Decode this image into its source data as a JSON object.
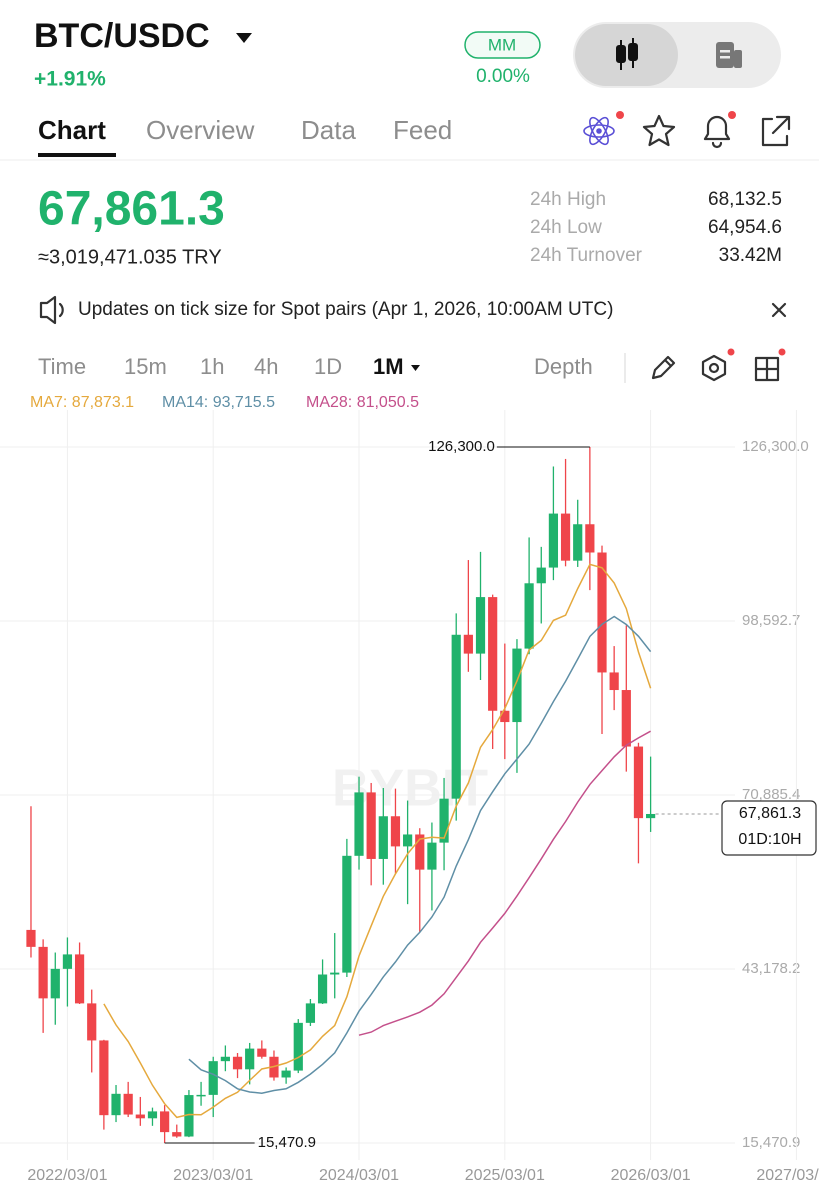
{
  "header": {
    "pair": "BTC/USDC",
    "change": "+1.91%",
    "mm_button": "MM",
    "mm_value": "0.00%"
  },
  "tabs": [
    {
      "label": "Chart",
      "active": true
    },
    {
      "label": "Overview",
      "active": false
    },
    {
      "label": "Data",
      "active": false
    },
    {
      "label": "Feed",
      "active": false
    }
  ],
  "price": {
    "last": "67,861.3",
    "converted": "≈3,019,471.035 TRY"
  },
  "stats": [
    {
      "label": "24h High",
      "value": "68,132.5"
    },
    {
      "label": "24h Low",
      "value": "64,954.6"
    },
    {
      "label": "24h Turnover",
      "value": "33.42M"
    }
  ],
  "notice": "Updates on tick size for Spot pairs (Apr 1, 2026, 10:00AM UTC)",
  "intervals": [
    {
      "label": "Time",
      "active": false
    },
    {
      "label": "15m",
      "active": false
    },
    {
      "label": "1h",
      "active": false
    },
    {
      "label": "4h",
      "active": false
    },
    {
      "label": "1D",
      "active": false
    },
    {
      "label": "1M",
      "active": true
    }
  ],
  "depth": "Depth",
  "chart_data": {
    "type": "candlestick",
    "up_color": "#20b26c",
    "down_color": "#ef454a",
    "open": [
      49400,
      46700,
      38500,
      43200,
      45500,
      37700,
      31800,
      19900,
      23300,
      20000,
      19400,
      20500,
      17200,
      16500,
      23100,
      23130,
      28500,
      29200,
      27200,
      30500,
      29200,
      25900,
      27000,
      34600,
      37700,
      42300,
      42600,
      61200,
      71300,
      60700,
      67500,
      62700,
      64600,
      59000,
      63300,
      70300,
      96400,
      93400,
      102400,
      84300,
      82500,
      94200,
      104600,
      107100,
      115700,
      108200,
      114000,
      109500,
      90400,
      87600,
      78600,
      67200
    ],
    "high": [
      69100,
      47900,
      45800,
      48200,
      47400,
      39900,
      31900,
      24700,
      25200,
      22800,
      21100,
      21500,
      18400,
      23900,
      25200,
      29200,
      31000,
      29800,
      31400,
      31800,
      30200,
      27500,
      35200,
      38400,
      44700,
      48900,
      63900,
      73800,
      72800,
      72000,
      71900,
      70000,
      65600,
      66500,
      73600,
      99800,
      108300,
      109600,
      102800,
      95000,
      95700,
      111900,
      110400,
      123200,
      124400,
      117900,
      126300,
      110600,
      94600,
      97900,
      79200,
      77000
    ],
    "low": [
      45000,
      33000,
      34300,
      37200,
      37600,
      26700,
      17600,
      18800,
      19600,
      18200,
      18200,
      15470.9,
      16300,
      16400,
      21400,
      19600,
      26900,
      25800,
      24800,
      28900,
      25400,
      24900,
      26600,
      34100,
      37600,
      38500,
      41900,
      59000,
      56500,
      56600,
      58400,
      53500,
      49000,
      52500,
      58900,
      66800,
      90500,
      89200,
      78200,
      76600,
      74400,
      93300,
      98200,
      105100,
      107300,
      107200,
      103500,
      80600,
      84400,
      74600,
      60000,
      65000
    ],
    "close": [
      46700,
      38500,
      43200,
      45500,
      37700,
      31800,
      19900,
      23300,
      20000,
      19400,
      20500,
      17200,
      16500,
      23100,
      23130,
      28500,
      29200,
      27200,
      30500,
      29200,
      25900,
      27000,
      34600,
      37700,
      42300,
      42600,
      61200,
      71300,
      60700,
      67500,
      62700,
      64600,
      59000,
      63300,
      70300,
      96400,
      93400,
      102400,
      84300,
      82500,
      94200,
      104600,
      107100,
      115700,
      108200,
      114000,
      109500,
      90400,
      87600,
      78600,
      67200,
      67861.3
    ],
    "series": [
      {
        "name": "MA7",
        "legend": "MA7: 87,873.1",
        "color": "#e5a93d",
        "values": [
          null,
          null,
          null,
          null,
          null,
          null,
          37614,
          34271,
          31629,
          28229,
          24657,
          21729,
          19543,
          20000,
          19971,
          21186,
          22586,
          23543,
          25443,
          27257,
          27657,
          28214,
          29086,
          30300,
          32457,
          34186,
          38757,
          45243,
          50057,
          54757,
          58329,
          61514,
          63857,
          64157,
          64014,
          69114,
          72814,
          78486,
          81300,
          84657,
          89071,
          93971,
          95500,
          98686,
          99514,
          103757,
          107614,
          107071,
          104643,
          100571,
          93643,
          87873.1
        ]
      },
      {
        "name": "MA14",
        "legend": "MA14: 93,715.5",
        "color": "#5f8fa6",
        "values": [
          null,
          null,
          null,
          null,
          null,
          null,
          null,
          null,
          null,
          null,
          null,
          null,
          null,
          28807,
          27121,
          26407,
          25407,
          24100,
          23586,
          23400,
          23829,
          24093,
          25136,
          26443,
          28000,
          29814,
          33007,
          36450,
          39136,
          41921,
          44314,
          46986,
          49021,
          51457,
          54629,
          59586,
          63786,
          68407,
          71407,
          74257,
          76614,
          78993,
          82307,
          85750,
          89000,
          92529,
          96136,
          98071,
          99307,
          98036,
          96164,
          93715.5
        ]
      },
      {
        "name": "MA28",
        "legend": "MA28: 81,050.5",
        "color": "#c4508b",
        "values": [
          null,
          null,
          null,
          null,
          null,
          null,
          null,
          null,
          null,
          null,
          null,
          null,
          null,
          null,
          null,
          null,
          null,
          null,
          null,
          null,
          null,
          null,
          null,
          null,
          null,
          null,
          null,
          32629,
          33129,
          34164,
          34861,
          35543,
          36304,
          37429,
          39229,
          41839,
          44461,
          47425,
          49704,
          52036,
          54811,
          57721,
          60721,
          63836,
          66657,
          69757,
          72579,
          74764,
          76968,
          78811,
          79975,
          81050.5
        ]
      }
    ],
    "ylim": [
      12760,
      132990
    ],
    "yticks": [
      {
        "value": 126300,
        "label": "126,300.0"
      },
      {
        "value": 98592.7,
        "label": "98,592.7"
      },
      {
        "value": 70885.4,
        "label": "70,885.4"
      },
      {
        "value": 43178.2,
        "label": "43,178.2"
      },
      {
        "value": 15470.9,
        "label": "15,470.9"
      }
    ],
    "xlim": [
      -2.55,
      64.86
    ],
    "xticks": [
      {
        "value": 3,
        "label": "2022/03/01"
      },
      {
        "value": 15,
        "label": "2023/03/01"
      },
      {
        "value": 27,
        "label": "2024/03/01"
      },
      {
        "value": 39,
        "label": "2025/03/01"
      },
      {
        "value": 51,
        "label": "2026/03/01"
      },
      {
        "value": 63,
        "label": "2027/03/01"
      }
    ],
    "grid": true,
    "max_label": "126,300.0",
    "min_label": "15,470.9",
    "price_tag": {
      "label": "67,861.3",
      "countdown": "01D:10H"
    },
    "watermark": "BYBIT"
  }
}
